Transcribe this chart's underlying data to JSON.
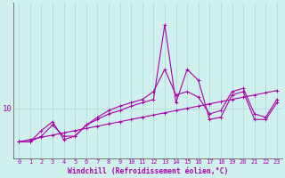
{
  "xlabel": "Windchill (Refroidissement éolien,°C)",
  "background_color": "#cff0ec",
  "grid_color": "#aaddd8",
  "line_color": "#aa00aa",
  "x": [
    0,
    1,
    2,
    3,
    4,
    5,
    6,
    7,
    8,
    9,
    10,
    11,
    12,
    13,
    14,
    15,
    16,
    17,
    18,
    19,
    20,
    21,
    22,
    23
  ],
  "line1": [
    7.0,
    7.0,
    7.5,
    8.5,
    7.5,
    7.5,
    8.5,
    9.0,
    9.5,
    9.8,
    10.2,
    10.5,
    10.8,
    17.5,
    10.5,
    13.5,
    12.5,
    9.0,
    9.2,
    11.2,
    11.5,
    9.0,
    9.0,
    10.5
  ],
  "line2": [
    7.0,
    7.0,
    8.0,
    8.8,
    7.2,
    7.5,
    8.5,
    9.2,
    9.8,
    10.2,
    10.5,
    10.8,
    11.5,
    13.5,
    11.2,
    11.5,
    11.0,
    9.5,
    9.8,
    11.5,
    11.8,
    9.5,
    9.2,
    10.8
  ],
  "line3": [
    7.0,
    7.2,
    7.4,
    7.6,
    7.8,
    8.0,
    8.2,
    8.4,
    8.6,
    8.8,
    9.0,
    9.2,
    9.4,
    9.6,
    9.8,
    10.0,
    10.2,
    10.4,
    10.6,
    10.8,
    11.0,
    11.2,
    11.4,
    11.6
  ],
  "ylim_min": 5.5,
  "ylim_max": 19.5,
  "ytick_val": 10,
  "xlim_min": -0.5,
  "xlim_max": 23.5
}
